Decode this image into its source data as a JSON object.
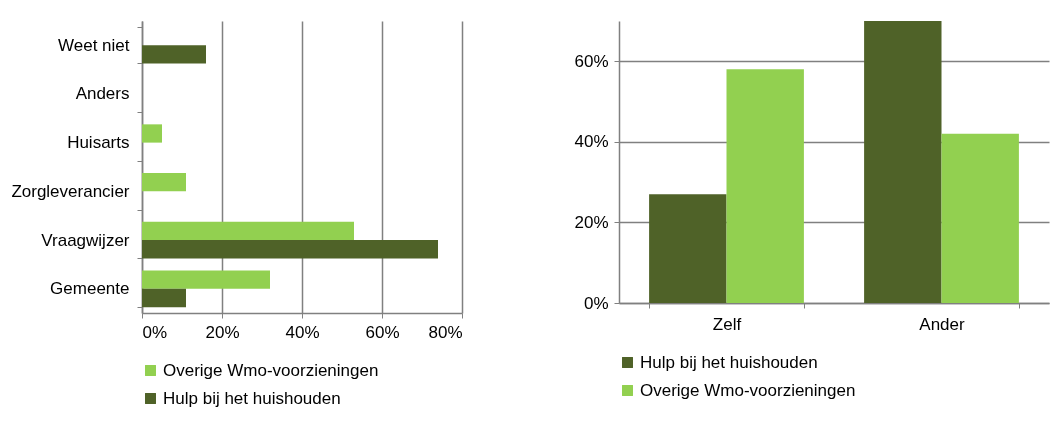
{
  "chart_data": [
    {
      "type": "bar",
      "orientation": "horizontal",
      "categories": [
        "Weet niet",
        "Anders",
        "Huisarts",
        "Zorgleverancier",
        "Vraagwijzer",
        "Gemeente"
      ],
      "series": [
        {
          "name": "Overige Wmo-voorzieningen",
          "color": "#92d050",
          "values": [
            null,
            null,
            5,
            11,
            53,
            32
          ]
        },
        {
          "name": "Hulp bij het huishouden",
          "color": "#4f6228",
          "values": [
            16,
            null,
            null,
            null,
            74,
            11
          ]
        }
      ],
      "xlim": [
        0,
        80
      ],
      "xticks": [
        {
          "value": 0,
          "label": "0%"
        },
        {
          "value": 20,
          "label": "20%"
        },
        {
          "value": 40,
          "label": "40%"
        },
        {
          "value": 60,
          "label": "60%"
        },
        {
          "value": 80,
          "label": "80%"
        }
      ],
      "grid": "x",
      "legend": "bottom"
    },
    {
      "type": "bar",
      "categories": [
        "Zelf",
        "Ander"
      ],
      "series": [
        {
          "name": "Hulp bij het huishouden",
          "color": "#4f6228",
          "values": [
            27,
            70
          ]
        },
        {
          "name": "Overige Wmo-voorzieningen",
          "color": "#92d050",
          "values": [
            58,
            42
          ]
        }
      ],
      "ylim": [
        0,
        70
      ],
      "yticks": [
        {
          "value": 0,
          "label": "0%"
        },
        {
          "value": 20,
          "label": "20%"
        },
        {
          "value": 40,
          "label": "40%"
        },
        {
          "value": 60,
          "label": "60%"
        }
      ],
      "grid": "y",
      "legend": "bottom"
    }
  ]
}
